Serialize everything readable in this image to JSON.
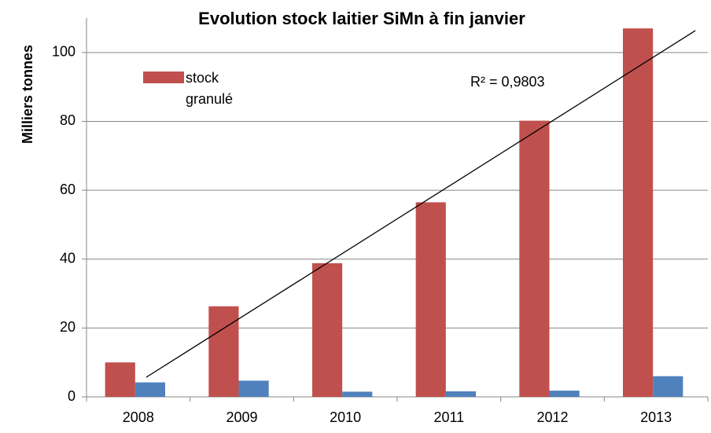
{
  "chart_data": {
    "type": "bar",
    "title": "Evolution stock laitier SiMn à fin janvier",
    "y_label": "Milliers tonnes",
    "categories": [
      "2008",
      "2009",
      "2010",
      "2011",
      "2012",
      "2013"
    ],
    "series": [
      {
        "name": "stock granulé",
        "color": "#c0504d",
        "values": [
          10,
          26.3,
          38.8,
          56.5,
          80.2,
          107
        ]
      },
      {
        "color": "#4f81bd",
        "values": [
          4.2,
          4.7,
          1.5,
          1.6,
          1.8,
          6
        ]
      }
    ],
    "trendline": {
      "series": 0,
      "annotation": "R² = 0,9803"
    },
    "ylim": [
      0,
      110
    ],
    "yticks": [
      0,
      20,
      40,
      60,
      80,
      100
    ],
    "grid": true
  }
}
